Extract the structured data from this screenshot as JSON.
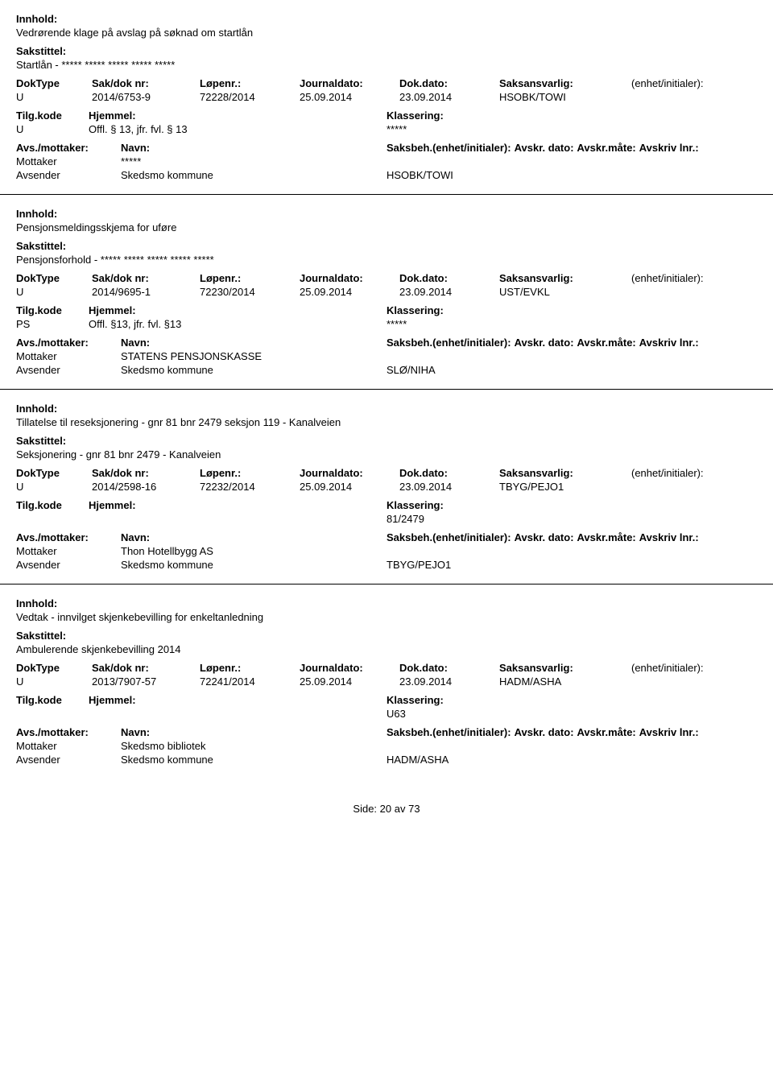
{
  "labels": {
    "innhold": "Innhold:",
    "sakstittel": "Sakstittel:",
    "doktype": "DokType",
    "sakdok": "Sak/dok nr:",
    "lopenr": "Løpenr.:",
    "journaldato": "Journaldato:",
    "dokdato": "Dok.dato:",
    "saksansvarlig": "Saksansvarlig:",
    "enhet": "(enhet/initialer):",
    "tilgkode": "Tilg.kode",
    "hjemmel": "Hjemmel:",
    "klassering": "Klassering:",
    "avsmottaker": "Avs./mottaker:",
    "navn": "Navn:",
    "saksbeh": "Saksbeh.(enhet/initialer):",
    "avskrdato": "Avskr. dato:",
    "avskrmote": "Avskr.måte:",
    "avskrivlnr": "Avskriv lnr.:",
    "mottaker": "Mottaker",
    "avsender": "Avsender"
  },
  "entries": [
    {
      "innhold": "Vedrørende klage på avslag på søknad om startlån",
      "sakstittel": "Startlån - ***** ***** ***** ***** *****",
      "doktype": "U",
      "sakdok": "2014/6753-9",
      "lopenr": "72228/2014",
      "journaldato": "25.09.2014",
      "dokdato": "23.09.2014",
      "saksansvarlig": "HSOBK/TOWI",
      "tilgkode": "U",
      "hjemmel": "Offl. § 13, jfr. fvl. § 13",
      "klassering": "*****",
      "mottaker_navn": "*****",
      "avsender_navn": "Skedsmo kommune",
      "saksbeh_val": "HSOBK/TOWI"
    },
    {
      "innhold": "Pensjonsmeldingsskjema for uføre",
      "sakstittel": "Pensjonsforhold - ***** ***** ***** ***** *****",
      "doktype": "U",
      "sakdok": "2014/9695-1",
      "lopenr": "72230/2014",
      "journaldato": "25.09.2014",
      "dokdato": "23.09.2014",
      "saksansvarlig": "UST/EVKL",
      "tilgkode": "PS",
      "hjemmel": "Offl. §13, jfr. fvl. §13",
      "klassering": "*****",
      "mottaker_navn": "STATENS PENSJONSKASSE",
      "avsender_navn": "Skedsmo kommune",
      "saksbeh_val": "SLØ/NIHA"
    },
    {
      "innhold": "Tillatelse til reseksjonering - gnr 81 bnr 2479 seksjon 119 - Kanalveien",
      "sakstittel": "Seksjonering - gnr 81 bnr 2479 - Kanalveien",
      "doktype": "U",
      "sakdok": "2014/2598-16",
      "lopenr": "72232/2014",
      "journaldato": "25.09.2014",
      "dokdato": "23.09.2014",
      "saksansvarlig": "TBYG/PEJO1",
      "tilgkode": "",
      "hjemmel": "",
      "klassering": "81/2479",
      "mottaker_navn": "Thon Hotellbygg AS",
      "avsender_navn": "Skedsmo kommune",
      "saksbeh_val": "TBYG/PEJO1"
    },
    {
      "innhold": "Vedtak - innvilget skjenkebevilling for enkeltanledning",
      "sakstittel": "Ambulerende skjenkebevilling 2014",
      "doktype": "U",
      "sakdok": "2013/7907-57",
      "lopenr": "72241/2014",
      "journaldato": "25.09.2014",
      "dokdato": "23.09.2014",
      "saksansvarlig": "HADM/ASHA",
      "tilgkode": "",
      "hjemmel": "",
      "klassering": "U63",
      "mottaker_navn": "Skedsmo bibliotek",
      "avsender_navn": "Skedsmo kommune",
      "saksbeh_val": "HADM/ASHA"
    }
  ],
  "footer": {
    "side": "Side:",
    "page": "20",
    "av": "av",
    "total": "73"
  }
}
